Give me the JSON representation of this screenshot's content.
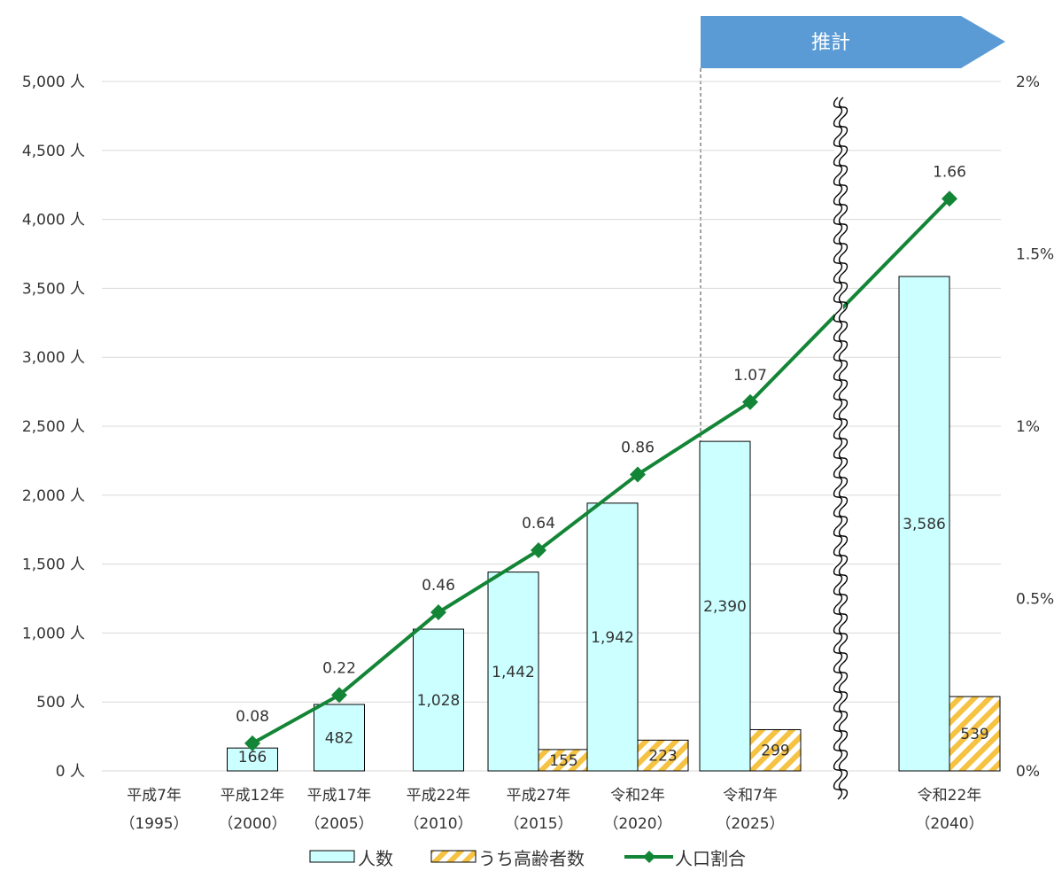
{
  "chart_data": {
    "type": "bar",
    "title": "",
    "categories": [
      {
        "name": "平成7年",
        "year": "（1995）"
      },
      {
        "name": "平成12年",
        "year": "（2000）"
      },
      {
        "name": "平成17年",
        "year": "（2005）"
      },
      {
        "name": "平成22年",
        "year": "（2010）"
      },
      {
        "name": "平成27年",
        "year": "（2015）"
      },
      {
        "name": "令和2年",
        "year": "（2020）"
      },
      {
        "name": "令和7年",
        "year": "（2025）"
      },
      {
        "name": "令和22年",
        "year": "（2040）"
      }
    ],
    "series": [
      {
        "name": "人数",
        "kind": "bar",
        "axis": "left",
        "color": "#ccffff",
        "values": [
          null,
          166,
          482,
          1028,
          1442,
          1942,
          2390,
          3586
        ],
        "labels": [
          "",
          "166",
          "482",
          "1,028",
          "1,442",
          "1,942",
          "2,390",
          "3,586"
        ]
      },
      {
        "name": "うち高齢者数",
        "kind": "bar",
        "axis": "left",
        "pattern": "diagonal-stripes",
        "color": "#f5c242",
        "values": [
          null,
          null,
          null,
          null,
          155,
          223,
          299,
          539
        ],
        "labels": [
          "",
          "",
          "",
          "",
          "155",
          "223",
          "299",
          "539"
        ]
      },
      {
        "name": "人口割合",
        "kind": "line",
        "axis": "right",
        "color": "#138536",
        "marker": "diamond",
        "values": [
          null,
          0.08,
          0.22,
          0.46,
          0.64,
          0.86,
          1.07,
          1.66
        ],
        "labels": [
          "",
          "0.08",
          "0.22",
          "0.46",
          "0.64",
          "0.86",
          "1.07",
          "1.66"
        ]
      }
    ],
    "y_left": {
      "range": [
        0,
        5000
      ],
      "ticks": [
        0,
        500,
        1000,
        1500,
        2000,
        2500,
        3000,
        3500,
        4000,
        4500,
        5000
      ],
      "tick_labels": [
        "0 人",
        "500 人",
        "1,000 人",
        "1,500 人",
        "2,000 人",
        "2,500 人",
        "3,000 人",
        "3,500 人",
        "4,000 人",
        "4,500 人",
        "5,000 人"
      ]
    },
    "y_right": {
      "range": [
        0,
        2
      ],
      "ticks": [
        0,
        0.5,
        1,
        1.5,
        2
      ],
      "tick_labels": [
        "0%",
        "0.5%",
        "1%",
        "1.5%",
        "2%"
      ]
    },
    "estimate_label": "推計",
    "estimate_from_category": 6,
    "axis_break_between_categories": [
      6,
      7
    ],
    "grid": true,
    "legend_position": "bottom",
    "colors": {
      "text": "#333333",
      "grid": "#d9d9d9",
      "estimate": "#5b9bd5",
      "bar_stroke": "#000000"
    }
  }
}
